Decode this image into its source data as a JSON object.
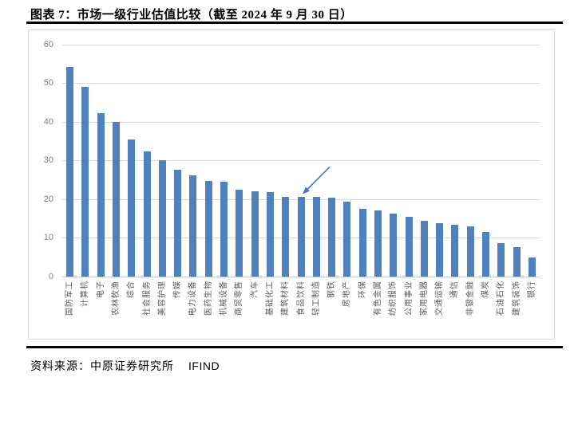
{
  "page": {
    "title": "图表 7：市场一级行业估值比较（截至 2024 年 9 月 30 日）",
    "footer": {
      "source_label": "资料来源：中原证券研究所",
      "provider": "IFIND"
    }
  },
  "chart_data": {
    "type": "bar",
    "title": "市场一级行业估值比较（截至 2024 年 9 月 30 日）",
    "categories": [
      "国防军工",
      "计算机",
      "电子",
      "农林牧渔",
      "综合",
      "社会服务",
      "美容护理",
      "传媒",
      "电力设备",
      "医药生物",
      "机械设备",
      "商贸零售",
      "汽车",
      "基础化工",
      "建筑材料",
      "食品饮料",
      "轻工制造",
      "钢铁",
      "房地产",
      "环保",
      "有色金属",
      "纺织服饰",
      "公用事业",
      "家用电器",
      "交通运输",
      "通信",
      "非银金融",
      "煤炭",
      "石油石化",
      "建筑装饰",
      "银行"
    ],
    "values": [
      54.2,
      49.1,
      42.3,
      40.0,
      35.5,
      32.4,
      30.0,
      27.7,
      26.2,
      24.8,
      24.6,
      22.5,
      22.0,
      21.8,
      20.7,
      20.5,
      20.6,
      20.4,
      19.3,
      17.5,
      17.0,
      16.2,
      15.5,
      14.4,
      13.7,
      13.3,
      12.9,
      11.6,
      8.7,
      7.6,
      4.9
    ],
    "xlabel": "",
    "ylabel": "",
    "ylim": [
      0,
      60
    ],
    "yticks": [
      0,
      10,
      20,
      30,
      40,
      50,
      60
    ],
    "grid": true,
    "legend": false,
    "bar_color": "#4f81bd",
    "gridline_color": "#d9d9d9",
    "axis_label_color": "#7f7f7f",
    "category_label_color": "#595959",
    "annotation": {
      "type": "arrow",
      "target_category": "食品饮料",
      "color": "#4472c4"
    }
  }
}
